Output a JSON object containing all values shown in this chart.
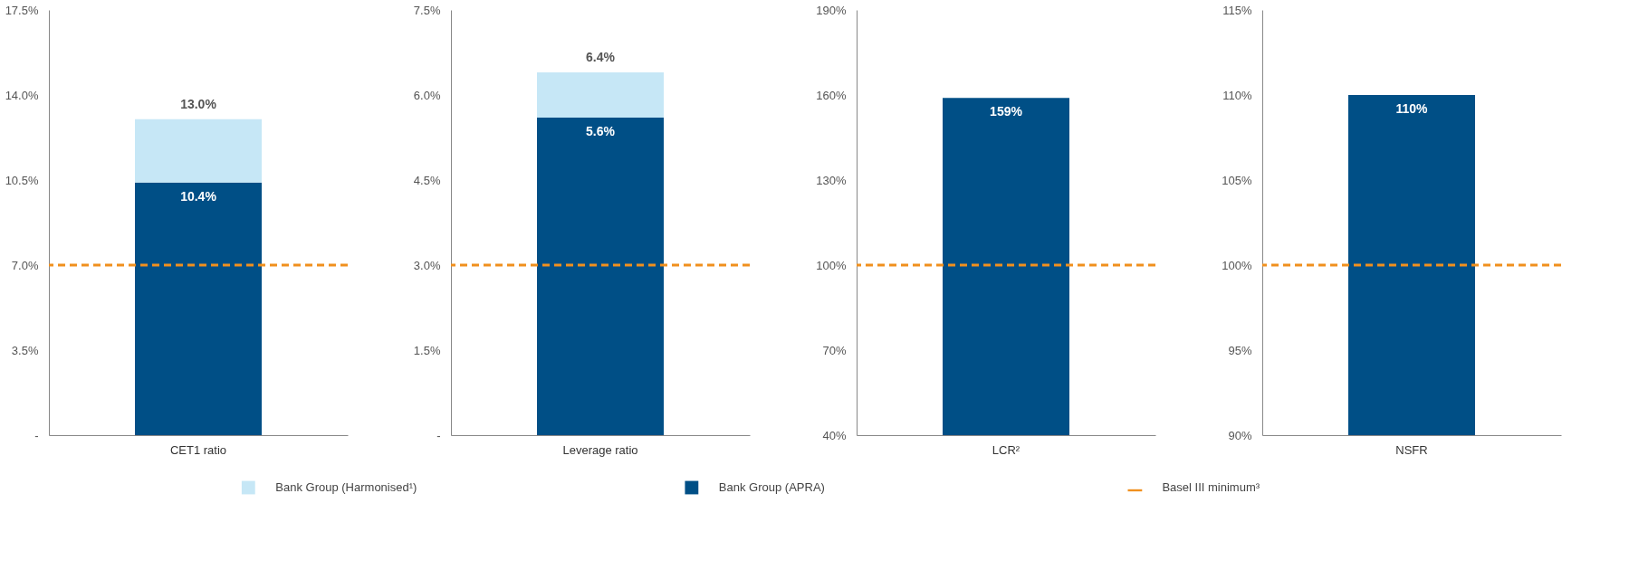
{
  "chart_data": [
    {
      "type": "bar",
      "stacked": true,
      "categories": [
        "CET1 ratio"
      ],
      "series": [
        {
          "name": "Bank Group (APRA)",
          "color": "#004f86",
          "values": [
            10.4
          ],
          "value_labels": [
            "10.4%"
          ]
        },
        {
          "name": "Bank Group (Harmonised¹)",
          "color": "#c6e7f6",
          "values": [
            2.6
          ]
        }
      ],
      "totals": [
        "13.0%"
      ],
      "ylim": [
        0,
        17.5
      ],
      "yticks": [
        {
          "value": 0,
          "label": "-"
        },
        {
          "value": 3.5,
          "label": "3.5%"
        },
        {
          "value": 7,
          "label": "7.0%"
        },
        {
          "value": 10.5,
          "label": "10.5%"
        },
        {
          "value": 14,
          "label": "14.0%"
        },
        {
          "value": 17.5,
          "label": "17.5%"
        }
      ],
      "ref_lines": [
        {
          "axis": "y",
          "value": 7.0,
          "label": "Basel III minimum³",
          "color": "#f0901e",
          "line_style": "dashed"
        }
      ],
      "legend": "bottom"
    },
    {
      "type": "bar",
      "stacked": true,
      "categories": [
        "Leverage ratio"
      ],
      "series": [
        {
          "color": "#004f86",
          "values": [
            5.6
          ],
          "value_labels": [
            "5.6%"
          ]
        },
        {
          "color": "#c6e7f6",
          "values": [
            0.8
          ]
        }
      ],
      "totals": [
        "6.4%"
      ],
      "ylim": [
        0,
        7.5
      ],
      "yticks": [
        {
          "value": 0,
          "label": "-"
        },
        {
          "value": 1.5,
          "label": "1.5%"
        },
        {
          "value": 3,
          "label": "3.0%"
        },
        {
          "value": 4.5,
          "label": "4.5%"
        },
        {
          "value": 6,
          "label": "6.0%"
        },
        {
          "value": 7.5,
          "label": "7.5%"
        }
      ],
      "ref_lines": [
        {
          "axis": "y",
          "value": 3.0,
          "color": "#f0901e",
          "line_style": "dashed"
        }
      ]
    },
    {
      "type": "bar",
      "categories": [
        "LCR²"
      ],
      "series": [
        {
          "color": "#004f86",
          "values": [
            159
          ],
          "value_labels": [
            "159%"
          ]
        }
      ],
      "ylim": [
        40,
        190
      ],
      "yticks": [
        {
          "value": 40,
          "label": "40%"
        },
        {
          "value": 70,
          "label": "70%"
        },
        {
          "value": 100,
          "label": "100%"
        },
        {
          "value": 130,
          "label": "130%"
        },
        {
          "value": 160,
          "label": "160%"
        },
        {
          "value": 190,
          "label": "190%"
        }
      ],
      "ref_lines": [
        {
          "axis": "y",
          "value": 100,
          "color": "#f0901e",
          "line_style": "dashed"
        }
      ]
    },
    {
      "type": "bar",
      "categories": [
        "NSFR"
      ],
      "series": [
        {
          "color": "#004f86",
          "values": [
            110
          ],
          "value_labels": [
            "110%"
          ]
        }
      ],
      "ylim": [
        90,
        115
      ],
      "yticks": [
        {
          "value": 90,
          "label": "90%"
        },
        {
          "value": 95,
          "label": "95%"
        },
        {
          "value": 100,
          "label": "100%"
        },
        {
          "value": 105,
          "label": "105%"
        },
        {
          "value": 110,
          "label": "110%"
        },
        {
          "value": 115,
          "label": "115%"
        }
      ],
      "ref_lines": [
        {
          "axis": "y",
          "value": 100,
          "color": "#f0901e",
          "line_style": "dashed"
        }
      ]
    }
  ]
}
